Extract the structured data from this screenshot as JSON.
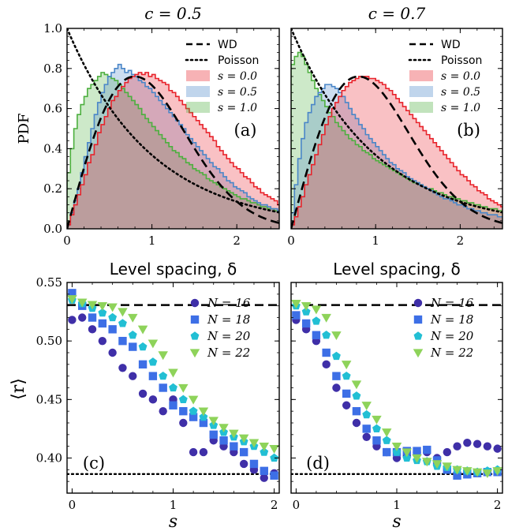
{
  "chart_data": [
    {
      "type": "area",
      "panel_label": "(a)",
      "title": "c = 0.5",
      "xlabel": "Level spacing, δ",
      "ylabel": "PDF",
      "xlim": [
        0,
        2.5
      ],
      "ylim": [
        0,
        1.0
      ],
      "xticks": [
        0,
        1,
        2
      ],
      "yticks": [
        0.0,
        0.2,
        0.4,
        0.6,
        0.8,
        1.0
      ],
      "legend_position": "top-right",
      "reference_curves": [
        {
          "name": "WD",
          "style": "dashed",
          "color": "#000000"
        },
        {
          "name": "Poisson",
          "style": "dotted",
          "color": "#000000"
        }
      ],
      "series": [
        {
          "name": "s = 0.0",
          "color": "#e8222a",
          "fill": "#f0a8ae",
          "bin_width": 0.04,
          "values": [
            0.02,
            0.07,
            0.12,
            0.17,
            0.22,
            0.27,
            0.33,
            0.37,
            0.42,
            0.48,
            0.52,
            0.56,
            0.6,
            0.64,
            0.66,
            0.69,
            0.71,
            0.73,
            0.75,
            0.76,
            0.77,
            0.78,
            0.77,
            0.78,
            0.76,
            0.77,
            0.75,
            0.74,
            0.73,
            0.72,
            0.69,
            0.68,
            0.66,
            0.64,
            0.62,
            0.6,
            0.58,
            0.56,
            0.54,
            0.52,
            0.5,
            0.48,
            0.46,
            0.44,
            0.41,
            0.39,
            0.37,
            0.35,
            0.33,
            0.31,
            0.3,
            0.28,
            0.26,
            0.25,
            0.23,
            0.21,
            0.2,
            0.18,
            0.17,
            0.16,
            0.15,
            0.14,
            0.12
          ]
        },
        {
          "name": "s = 0.5",
          "color": "#4a86c8",
          "fill": "#a9c4e2",
          "bin_width": 0.04,
          "values": [
            0.02,
            0.08,
            0.14,
            0.2,
            0.28,
            0.36,
            0.43,
            0.5,
            0.57,
            0.63,
            0.68,
            0.72,
            0.76,
            0.78,
            0.8,
            0.82,
            0.8,
            0.78,
            0.79,
            0.77,
            0.76,
            0.74,
            0.73,
            0.71,
            0.7,
            0.68,
            0.66,
            0.64,
            0.62,
            0.6,
            0.58,
            0.56,
            0.54,
            0.52,
            0.5,
            0.47,
            0.45,
            0.43,
            0.41,
            0.39,
            0.37,
            0.35,
            0.33,
            0.31,
            0.3,
            0.28,
            0.26,
            0.24,
            0.23,
            0.21,
            0.2,
            0.19,
            0.18,
            0.16,
            0.15,
            0.14,
            0.13,
            0.12,
            0.12,
            0.11,
            0.1,
            0.1,
            0.09
          ]
        },
        {
          "name": "s = 1.0",
          "color": "#4caf3e",
          "fill": "#b6dcae",
          "bin_width": 0.04,
          "values": [
            0.28,
            0.4,
            0.5,
            0.57,
            0.62,
            0.66,
            0.7,
            0.72,
            0.74,
            0.76,
            0.78,
            0.77,
            0.76,
            0.75,
            0.74,
            0.72,
            0.7,
            0.68,
            0.66,
            0.64,
            0.62,
            0.6,
            0.57,
            0.55,
            0.53,
            0.51,
            0.49,
            0.47,
            0.45,
            0.43,
            0.41,
            0.39,
            0.38,
            0.36,
            0.35,
            0.33,
            0.32,
            0.3,
            0.29,
            0.28,
            0.27,
            0.25,
            0.24,
            0.23,
            0.22,
            0.21,
            0.2,
            0.19,
            0.18,
            0.17,
            0.16,
            0.15,
            0.15,
            0.14,
            0.13,
            0.13,
            0.12,
            0.11,
            0.11,
            0.1,
            0.1,
            0.09,
            0.09
          ]
        }
      ]
    },
    {
      "type": "area",
      "panel_label": "(b)",
      "title": "c = 0.7",
      "xlabel": "Level spacing, δ",
      "ylabel": "",
      "xlim": [
        0,
        2.5
      ],
      "ylim": [
        0,
        1.0
      ],
      "xticks": [
        0,
        1,
        2
      ],
      "yticks": [
        0.0,
        0.2,
        0.4,
        0.6,
        0.8,
        1.0
      ],
      "legend_position": "top-right",
      "reference_curves": [
        {
          "name": "WD",
          "style": "dashed",
          "color": "#000000"
        },
        {
          "name": "Poisson",
          "style": "dotted",
          "color": "#000000"
        }
      ],
      "series": [
        {
          "name": "s = 0.0",
          "color": "#e8222a",
          "fill": "#f0a8ae",
          "bin_width": 0.04,
          "values": [
            0.02,
            0.06,
            0.11,
            0.16,
            0.22,
            0.27,
            0.32,
            0.37,
            0.42,
            0.47,
            0.52,
            0.56,
            0.6,
            0.63,
            0.66,
            0.69,
            0.71,
            0.73,
            0.74,
            0.75,
            0.76,
            0.76,
            0.76,
            0.75,
            0.75,
            0.74,
            0.73,
            0.72,
            0.7,
            0.69,
            0.67,
            0.65,
            0.63,
            0.61,
            0.59,
            0.57,
            0.55,
            0.53,
            0.51,
            0.49,
            0.47,
            0.45,
            0.43,
            0.41,
            0.39,
            0.37,
            0.35,
            0.33,
            0.31,
            0.29,
            0.27,
            0.26,
            0.24,
            0.22,
            0.21,
            0.19,
            0.18,
            0.17,
            0.15,
            0.14,
            0.13,
            0.12,
            0.11
          ]
        },
        {
          "name": "s = 0.5",
          "color": "#4a86c8",
          "fill": "#a9c4e2",
          "bin_width": 0.04,
          "values": [
            0.08,
            0.22,
            0.35,
            0.45,
            0.53,
            0.58,
            0.62,
            0.66,
            0.68,
            0.7,
            0.72,
            0.72,
            0.71,
            0.7,
            0.68,
            0.66,
            0.63,
            0.6,
            0.57,
            0.55,
            0.52,
            0.5,
            0.47,
            0.45,
            0.43,
            0.41,
            0.39,
            0.37,
            0.35,
            0.33,
            0.32,
            0.3,
            0.29,
            0.28,
            0.26,
            0.25,
            0.24,
            0.23,
            0.22,
            0.21,
            0.2,
            0.19,
            0.18,
            0.17,
            0.16,
            0.15,
            0.15,
            0.14,
            0.13,
            0.12,
            0.12,
            0.11,
            0.1,
            0.1,
            0.09,
            0.09,
            0.08,
            0.08,
            0.07,
            0.07,
            0.07,
            0.06,
            0.06
          ]
        },
        {
          "name": "s = 1.0",
          "color": "#4caf3e",
          "fill": "#b6dcae",
          "bin_width": 0.04,
          "values": [
            0.82,
            0.86,
            0.88,
            0.86,
            0.82,
            0.78,
            0.74,
            0.7,
            0.67,
            0.64,
            0.61,
            0.58,
            0.56,
            0.53,
            0.51,
            0.49,
            0.47,
            0.45,
            0.44,
            0.42,
            0.41,
            0.39,
            0.38,
            0.37,
            0.35,
            0.34,
            0.33,
            0.32,
            0.31,
            0.3,
            0.29,
            0.28,
            0.27,
            0.26,
            0.25,
            0.24,
            0.23,
            0.23,
            0.22,
            0.21,
            0.2,
            0.2,
            0.19,
            0.18,
            0.18,
            0.17,
            0.16,
            0.16,
            0.15,
            0.15,
            0.14,
            0.14,
            0.13,
            0.13,
            0.12,
            0.12,
            0.11,
            0.11,
            0.1,
            0.1,
            0.1,
            0.09,
            0.09
          ]
        }
      ]
    },
    {
      "type": "scatter",
      "panel_label": "(c)",
      "xlabel": "s",
      "ylabel": "⟨r⟩",
      "xlim": [
        -0.05,
        2.05
      ],
      "ylim": [
        0.37,
        0.55
      ],
      "xticks": [
        0,
        1,
        2
      ],
      "yticks": [
        0.4,
        0.45,
        0.5,
        0.55
      ],
      "legend_position": "top-right",
      "reference_lines": [
        {
          "name": "WD",
          "y": 0.5307,
          "style": "dashed"
        },
        {
          "name": "Poisson",
          "y": 0.3863,
          "style": "dotted"
        }
      ],
      "x": [
        0.0,
        0.1,
        0.2,
        0.3,
        0.4,
        0.5,
        0.6,
        0.7,
        0.8,
        0.9,
        1.0,
        1.1,
        1.2,
        1.3,
        1.4,
        1.5,
        1.6,
        1.7,
        1.8,
        1.9,
        2.0
      ],
      "series": [
        {
          "name": "N = 16",
          "marker": "circle",
          "color": "#3f2fa8",
          "values": [
            0.518,
            0.52,
            0.51,
            0.5,
            0.49,
            0.477,
            0.47,
            0.455,
            0.45,
            0.44,
            0.45,
            0.43,
            0.405,
            0.405,
            0.415,
            0.41,
            0.405,
            0.395,
            0.39,
            0.383,
            0.387
          ]
        },
        {
          "name": "N = 18",
          "marker": "square",
          "color": "#3d6fe6",
          "values": [
            0.541,
            0.53,
            0.52,
            0.515,
            0.51,
            0.5,
            0.495,
            0.48,
            0.47,
            0.46,
            0.445,
            0.44,
            0.435,
            0.43,
            0.42,
            0.415,
            0.41,
            0.405,
            0.395,
            0.389,
            0.385
          ]
        },
        {
          "name": "N = 20",
          "marker": "pentagon",
          "color": "#22bfd4",
          "values": [
            0.535,
            0.532,
            0.528,
            0.524,
            0.52,
            0.515,
            0.505,
            0.495,
            0.482,
            0.47,
            0.46,
            0.45,
            0.44,
            0.435,
            0.428,
            0.422,
            0.418,
            0.414,
            0.41,
            0.405,
            0.4
          ]
        },
        {
          "name": "N = 22",
          "marker": "triangle-down",
          "color": "#8ed35a",
          "values": [
            0.536,
            0.533,
            0.531,
            0.53,
            0.529,
            0.525,
            0.52,
            0.51,
            0.498,
            0.488,
            0.473,
            0.46,
            0.45,
            0.44,
            0.432,
            0.426,
            0.421,
            0.417,
            0.413,
            0.41,
            0.408
          ]
        }
      ]
    },
    {
      "type": "scatter",
      "panel_label": "(d)",
      "xlabel": "s",
      "ylabel": "",
      "xlim": [
        -0.05,
        2.05
      ],
      "ylim": [
        0.37,
        0.55
      ],
      "xticks": [
        0,
        1,
        2
      ],
      "yticks": [
        0.4,
        0.45,
        0.5,
        0.55
      ],
      "legend_position": "top-right",
      "reference_lines": [
        {
          "name": "WD",
          "y": 0.5307,
          "style": "dashed"
        },
        {
          "name": "Poisson",
          "y": 0.3863,
          "style": "dotted"
        }
      ],
      "x": [
        0.0,
        0.1,
        0.2,
        0.3,
        0.4,
        0.5,
        0.6,
        0.7,
        0.8,
        0.9,
        1.0,
        1.1,
        1.2,
        1.3,
        1.4,
        1.5,
        1.6,
        1.7,
        1.8,
        1.9,
        2.0
      ],
      "series": [
        {
          "name": "N = 16",
          "marker": "circle",
          "color": "#3f2fa8",
          "values": [
            0.518,
            0.51,
            0.5,
            0.48,
            0.46,
            0.445,
            0.43,
            0.418,
            0.41,
            0.405,
            0.4,
            0.402,
            0.405,
            0.405,
            0.4,
            0.405,
            0.41,
            0.413,
            0.412,
            0.41,
            0.408
          ]
        },
        {
          "name": "N = 18",
          "marker": "square",
          "color": "#3d6fe6",
          "values": [
            0.522,
            0.515,
            0.505,
            0.49,
            0.47,
            0.455,
            0.44,
            0.425,
            0.415,
            0.405,
            0.405,
            0.406,
            0.406,
            0.407,
            0.398,
            0.39,
            0.385,
            0.386,
            0.387,
            0.388,
            0.388
          ]
        },
        {
          "name": "N = 20",
          "marker": "pentagon",
          "color": "#22bfd4",
          "values": [
            0.53,
            0.525,
            0.517,
            0.505,
            0.487,
            0.47,
            0.453,
            0.437,
            0.425,
            0.415,
            0.405,
            0.4,
            0.398,
            0.397,
            0.393,
            0.392,
            0.39,
            0.389,
            0.388,
            0.389,
            0.39
          ]
        },
        {
          "name": "N = 22",
          "marker": "triangle-down",
          "color": "#8ed35a",
          "values": [
            0.532,
            0.53,
            0.527,
            0.52,
            0.505,
            0.48,
            0.463,
            0.445,
            0.433,
            0.422,
            0.41,
            0.405,
            0.4,
            0.397,
            0.395,
            0.393,
            0.39,
            0.389,
            0.388,
            0.387,
            0.389
          ]
        }
      ]
    }
  ]
}
